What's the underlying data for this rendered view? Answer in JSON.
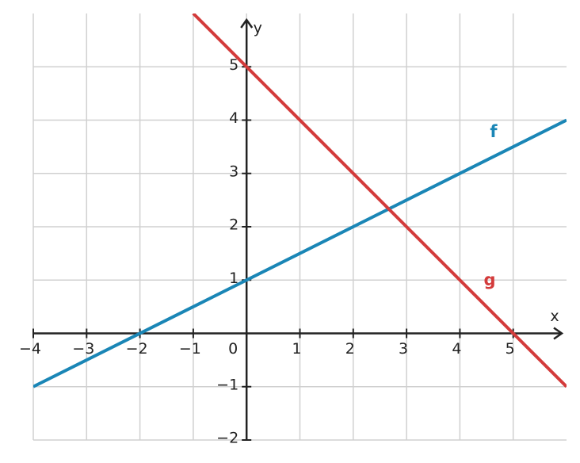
{
  "chart_data": {
    "type": "line",
    "xlabel": "x",
    "ylabel": "y",
    "xlim": [
      -4,
      6
    ],
    "ylim": [
      -2,
      6
    ],
    "xticks": [
      {
        "value": -4,
        "label": "−4"
      },
      {
        "value": -3,
        "label": "−3"
      },
      {
        "value": -2,
        "label": "−2"
      },
      {
        "value": -1,
        "label": "−1"
      },
      0,
      1,
      2,
      3,
      4,
      5
    ],
    "yticks": [
      {
        "value": -2,
        "label": "−2"
      },
      {
        "value": -1,
        "label": "−1"
      },
      1,
      2,
      3,
      4,
      5
    ],
    "grid": true,
    "series": [
      {
        "name": "f",
        "color": "#1a86b6",
        "x": [
          -4,
          6
        ],
        "values": [
          -1,
          4
        ]
      },
      {
        "name": "g",
        "color": "#d33b3b",
        "x": [
          -1,
          6
        ],
        "values": [
          6,
          -1
        ]
      }
    ]
  }
}
